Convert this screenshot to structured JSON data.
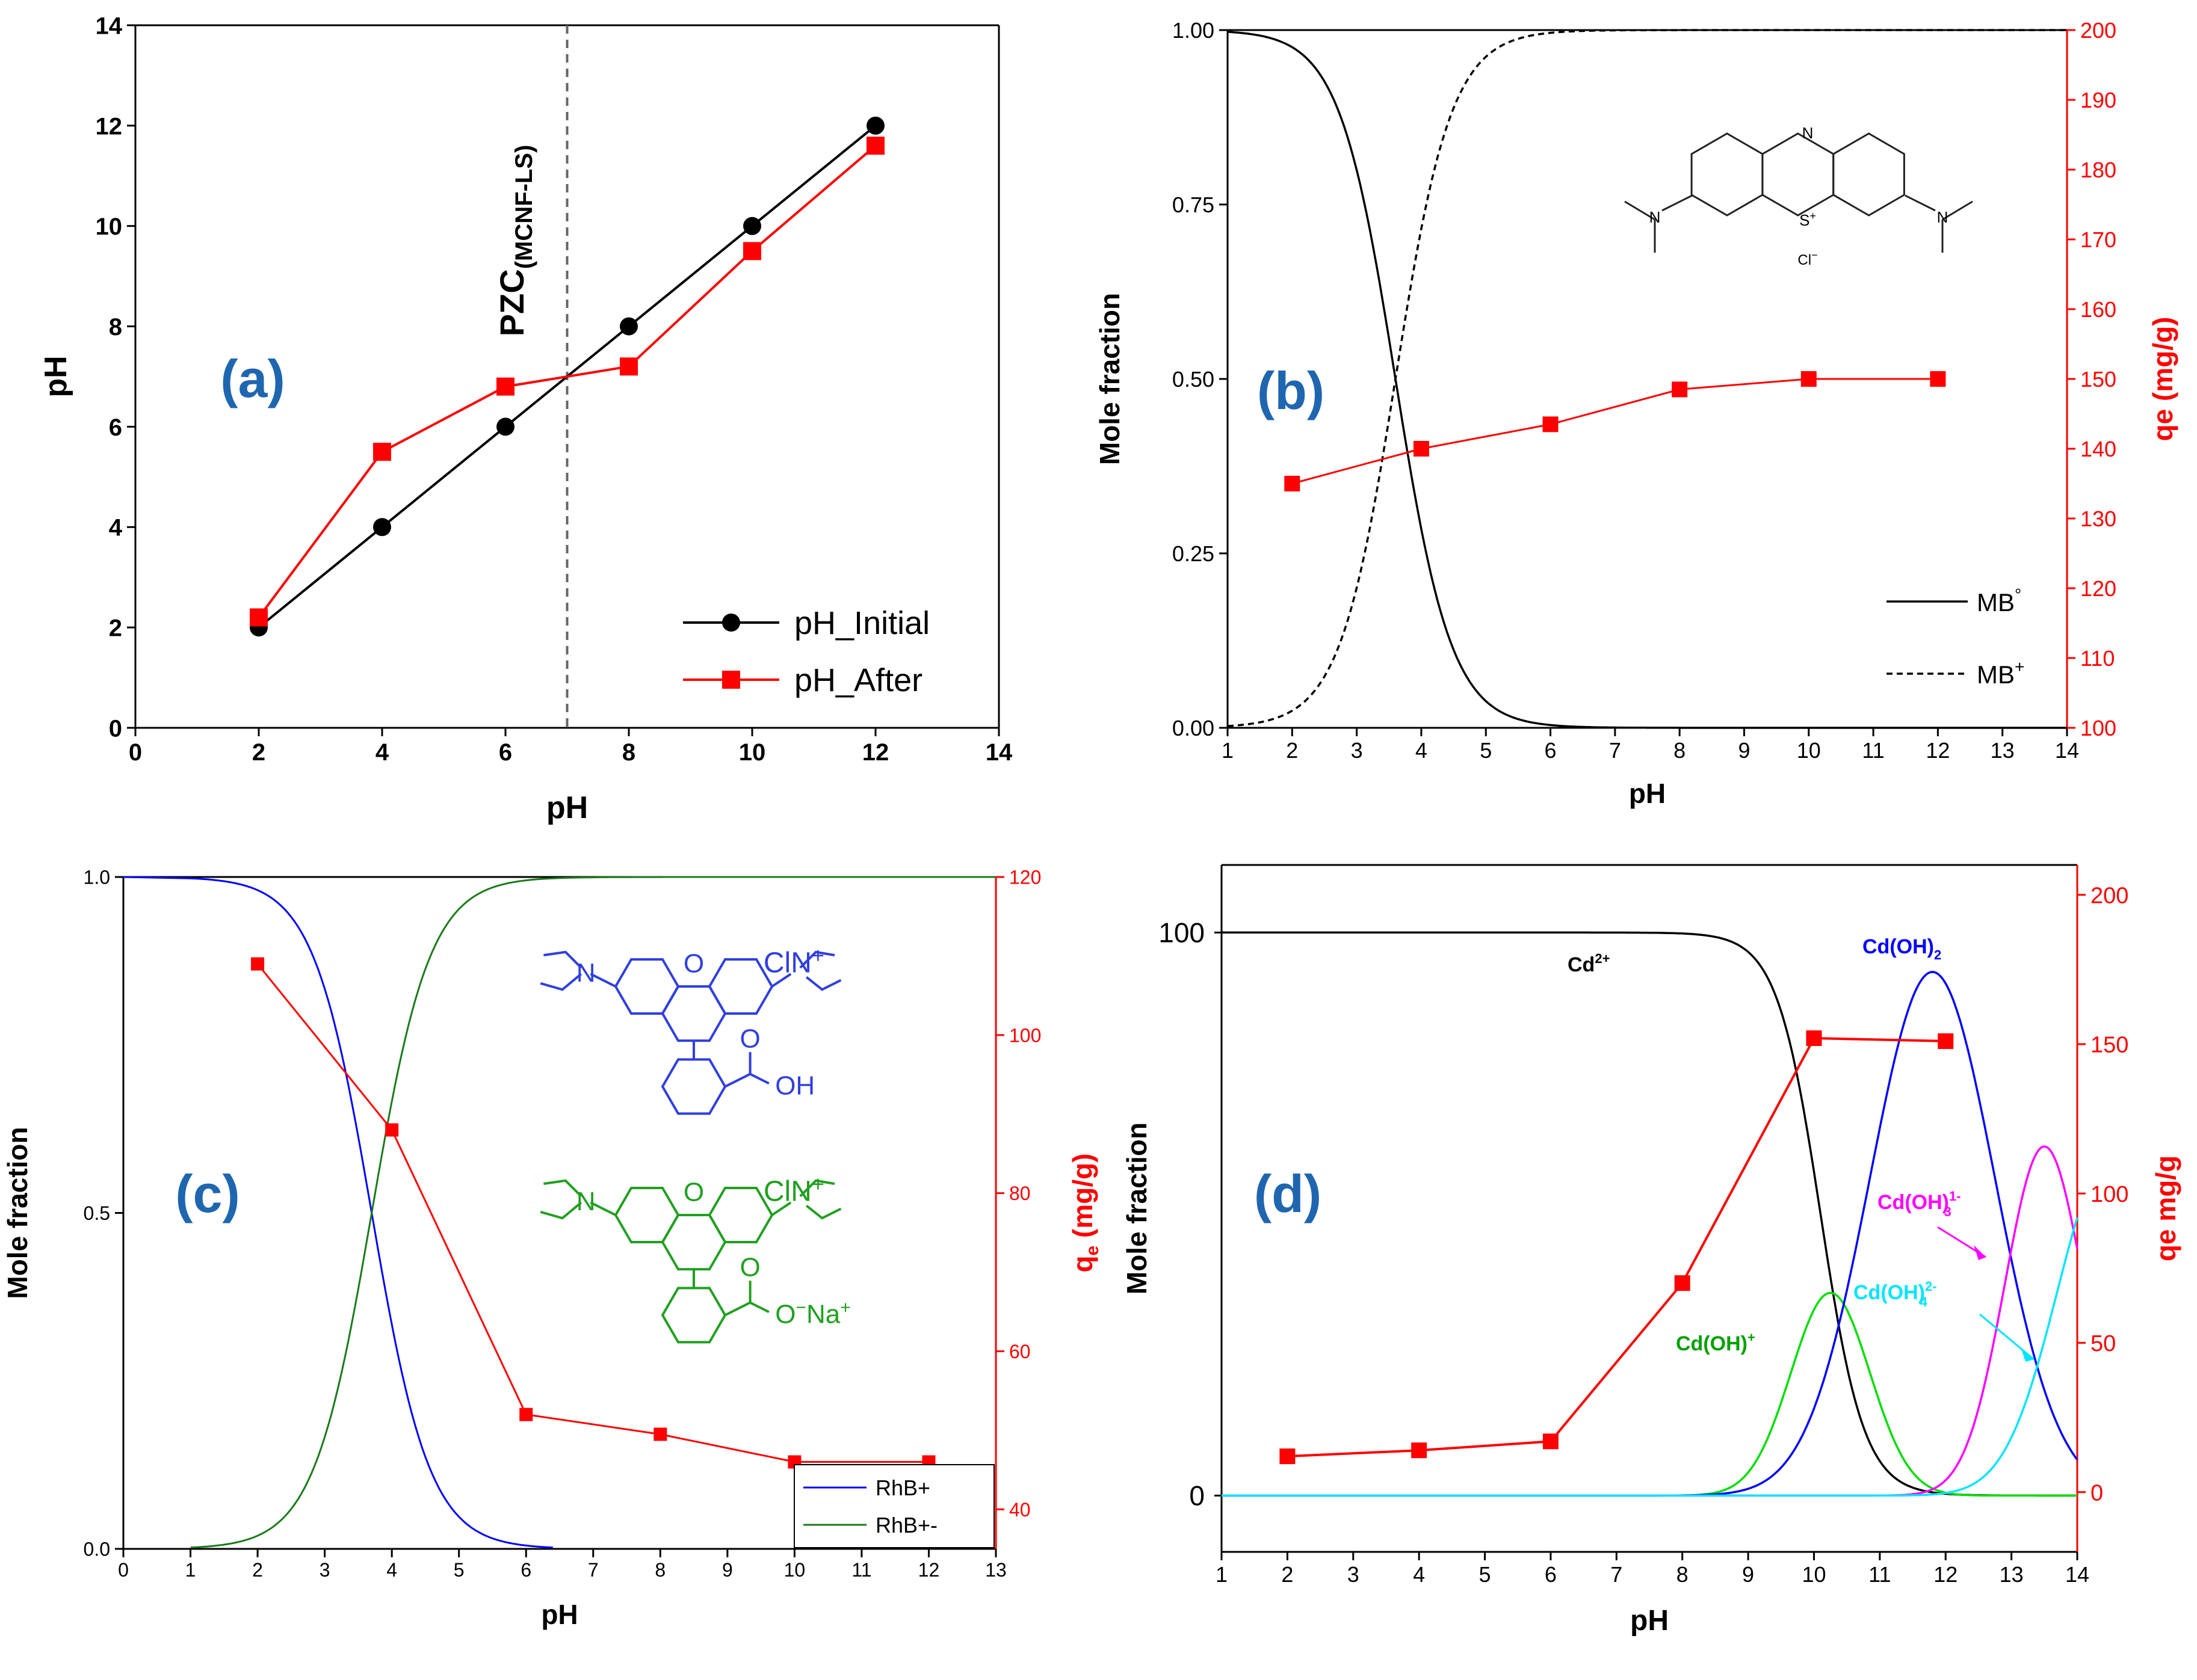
{
  "figure": {
    "panels": [
      "(a)",
      "(b)",
      "(c)",
      "(d)"
    ]
  },
  "colors": {
    "black": "#000000",
    "red": "#ff0000",
    "blue": "#0000ff",
    "green": "#00a000",
    "darkgreen": "#1a7a1a",
    "magenta": "#ff00ff",
    "cyan": "#00e5ff",
    "labelblue": "#1f66b0",
    "dashgray": "#666666",
    "chemblue": "#2f3fe0",
    "chemgreen": "#20a020"
  },
  "chart_data": [
    {
      "id": "a",
      "type": "line",
      "panel_label": "(a)",
      "xlabel": "pH",
      "ylabel": "pH",
      "xlim": [
        0,
        14
      ],
      "ylim": [
        0,
        14
      ],
      "xticks": [
        0,
        2,
        4,
        6,
        8,
        10,
        12,
        14
      ],
      "yticks": [
        0,
        2,
        4,
        6,
        8,
        10,
        12,
        14
      ],
      "series": [
        {
          "name": "pH_Initial",
          "color": "#000000",
          "marker": "circle",
          "x": [
            2,
            4,
            6,
            8,
            10,
            12
          ],
          "y": [
            2,
            4,
            6,
            8,
            10,
            12
          ]
        },
        {
          "name": "pH_After",
          "color": "#ff0000",
          "marker": "square",
          "x": [
            2,
            4,
            6,
            8,
            10,
            12
          ],
          "y": [
            2.2,
            5.5,
            6.8,
            7.2,
            9.5,
            11.6
          ]
        }
      ],
      "vline": {
        "x": 7,
        "label": "PZC",
        "subscript": "(MCNF-LS)"
      },
      "legend_position": "bottom-right"
    },
    {
      "id": "b",
      "type": "line",
      "panel_label": "(b)",
      "xlabel": "pH",
      "ylabel": "Mole fraction",
      "y2label": "qe (mg/g)",
      "xlim": [
        1,
        14
      ],
      "ylim": [
        0,
        1
      ],
      "y2lim": [
        100,
        200
      ],
      "xticks": [
        1,
        2,
        3,
        4,
        5,
        6,
        7,
        8,
        9,
        10,
        11,
        12,
        13,
        14
      ],
      "yticks": [
        "0.00",
        "0.25",
        "0.50",
        "0.75",
        "1.00"
      ],
      "y2ticks": [
        100,
        110,
        120,
        130,
        140,
        150,
        160,
        170,
        180,
        190,
        200
      ],
      "series": [
        {
          "name": "MB°",
          "legend_base": "MB",
          "legend_sup": "°",
          "color": "#000000",
          "style": "solid",
          "pKa": 3.6,
          "kind": "acid",
          "x_end": 14
        },
        {
          "name": "MB⁺",
          "legend_base": "MB",
          "legend_sup": "+",
          "color": "#000000",
          "style": "dashed",
          "pKa": 3.6,
          "kind": "base",
          "x_end": 14
        },
        {
          "name": "qe",
          "axis": "right",
          "color": "#ff0000",
          "marker": "square",
          "x": [
            2,
            4,
            6,
            8,
            10,
            12
          ],
          "y": [
            135,
            140,
            143.5,
            148.5,
            150,
            150
          ]
        }
      ],
      "structure": {
        "top": "N",
        "sulfur": "S",
        "counterion": "Cl"
      },
      "legend_position": "bottom-right"
    },
    {
      "id": "c",
      "type": "line",
      "panel_label": "(c)",
      "xlabel": "pH",
      "ylabel": "Mole fraction",
      "y2label_main": "q",
      "y2label_sub": "e",
      "y2label_rest": " (mg/g)",
      "xlim": [
        0,
        13
      ],
      "ylim": [
        0,
        1
      ],
      "y2lim": [
        35,
        120
      ],
      "xticks": [
        0,
        1,
        2,
        3,
        4,
        5,
        6,
        7,
        8,
        9,
        10,
        11,
        12,
        13
      ],
      "yticks": [
        "0.0",
        "0.5",
        "1.0"
      ],
      "y2ticks": [
        40,
        60,
        80,
        100,
        120
      ],
      "series": [
        {
          "name": "RhB+",
          "color": "#0000ff",
          "pKa": 3.7,
          "kind": "acid",
          "x_start": 1,
          "x_end": 6.4
        },
        {
          "name": "RhB+-",
          "color": "#1a7a1a",
          "pKa": 3.7,
          "kind": "base",
          "x_start": 1,
          "x_end": 13
        },
        {
          "name": "qe",
          "axis": "right",
          "color": "#ff0000",
          "marker": "square",
          "x": [
            2,
            4,
            6,
            8,
            10,
            12
          ],
          "y": [
            109,
            88,
            52,
            49.5,
            46,
            46
          ]
        }
      ],
      "structures": [
        {
          "color": "#2f3fe0",
          "n_label": "N",
          "o_label": "O",
          "cl_label": "Cl",
          "np_label": "N",
          "plus": "+",
          "acid_o": "O",
          "acid_oh": "OH"
        },
        {
          "color": "#20a020",
          "n_label": "N",
          "o_label": "O",
          "cl_label": "Cl",
          "np_label": "N",
          "plus": "+",
          "acid_o": "O",
          "acid_ona": "O",
          "minus": "−",
          "na": "Na",
          "na_plus": "+"
        }
      ],
      "legend_position": "bottom-right"
    },
    {
      "id": "d",
      "type": "line",
      "panel_label": "(d)",
      "xlabel": "pH",
      "ylabel": "Mole fraction",
      "y2label": "qe mg/g",
      "xlim": [
        1,
        14
      ],
      "ylim": [
        -10,
        112
      ],
      "y2lim": [
        -20,
        210
      ],
      "xticks": [
        1,
        2,
        3,
        4,
        5,
        6,
        7,
        8,
        9,
        10,
        11,
        12,
        13,
        14
      ],
      "yticks": [
        0,
        100
      ],
      "y2ticks": [
        0,
        50,
        100,
        150,
        200
      ],
      "series": [
        {
          "name": "Cd2+",
          "label_main": "Cd",
          "label_sup": "2+",
          "color": "#000000",
          "curve": "sigmoid_down",
          "center": 10.1,
          "width": 0.33,
          "peak": 100
        },
        {
          "name": "Cd(OH)+",
          "label_main": "Cd(OH)",
          "label_sup": "+",
          "color": "#00dd00",
          "curve": "gauss",
          "center": 10.25,
          "width": 0.6,
          "peak": 36
        },
        {
          "name": "Cd(OH)2",
          "label_main": "Cd(OH)",
          "label_sub": "2",
          "color": "#0000ff",
          "curve": "gauss",
          "center": 11.8,
          "width": 0.95,
          "peak": 93
        },
        {
          "name": "Cd(OH)3 1-",
          "label_main": "Cd(OH)",
          "label_sub": "3",
          "label_sup": "1-",
          "color": "#ff00ff",
          "curve": "gauss",
          "center": 13.5,
          "width": 0.6,
          "peak": 62
        },
        {
          "name": "Cd(OH)4 2-",
          "label_main": "Cd(OH)",
          "label_sub": "4",
          "label_sup": "2-",
          "color": "#00e5ff",
          "curve": "gauss",
          "center": 14.5,
          "width": 0.8,
          "peak": 60
        },
        {
          "name": "qe",
          "axis": "right",
          "color": "#ff0000",
          "marker": "square",
          "x": [
            2,
            4,
            6,
            8,
            10,
            12
          ],
          "y": [
            12,
            14,
            17,
            70,
            152,
            151
          ]
        }
      ]
    }
  ]
}
